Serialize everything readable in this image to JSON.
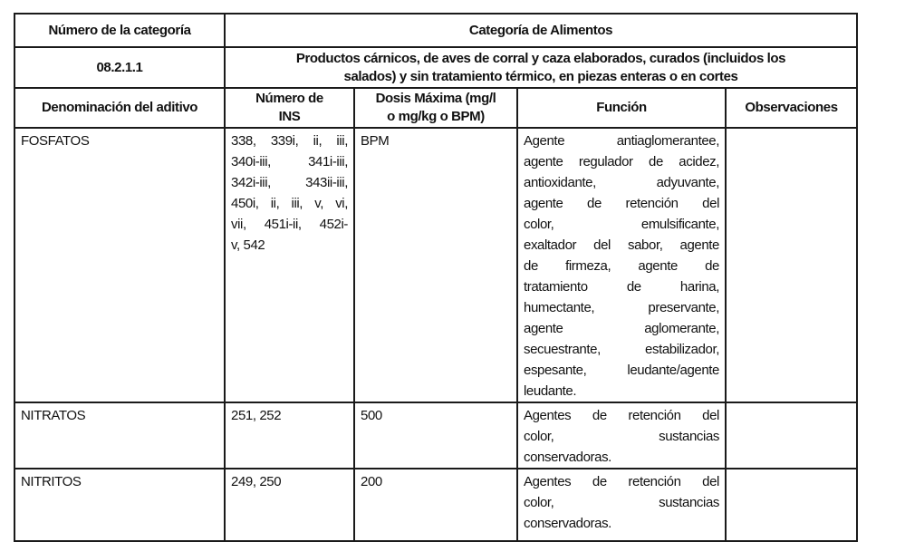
{
  "header": {
    "category_number_label": "Número de la categoría",
    "food_category_label": "Categoría de Alimentos",
    "category_number": "08.2.1.1",
    "category_description_lines": [
      "Productos cárnicos, de aves de corral y caza elaborados, curados (incluidos los",
      "salados) y sin tratamiento térmico, en piezas enteras o en cortes"
    ]
  },
  "columns": {
    "additive": "Denominación del aditivo",
    "ins_lines": [
      "Número de",
      "INS"
    ],
    "dose_lines": [
      "Dosis Máxima (mg/l",
      "o mg/kg o BPM)"
    ],
    "function": "Función",
    "observations": "Observaciones"
  },
  "rows": [
    {
      "additive": "FOSFATOS",
      "ins_lines": [
        "338, 339i, ii, iii,",
        "340i-iii, 341i-iii,",
        "342i-iii, 343ii-iii,",
        "450i, ii, iii, v, vi,",
        "vii, 451i-ii, 452i-",
        "v, 542"
      ],
      "dose": "BPM",
      "function_lines": [
        "Agente antiaglomerantee,",
        "agente regulador de acidez,",
        "antioxidante, adyuvante,",
        "agente de retención del",
        "color, emulsificante,",
        "exaltador del sabor, agente",
        "de firmeza, agente de",
        "tratamiento de harina,",
        "humectante, preservante,",
        "agente aglomerante,",
        "secuestrante, estabilizador,",
        "espesante, leudante/agente",
        "leudante."
      ],
      "observations": ""
    },
    {
      "additive": "NITRATOS",
      "ins_lines": [
        "251, 252"
      ],
      "dose": "500",
      "function_lines": [
        "Agentes de retención del",
        "color, sustancias",
        "conservadoras."
      ],
      "observations": ""
    },
    {
      "additive": "NITRITOS",
      "ins_lines": [
        "249, 250"
      ],
      "dose": "200",
      "function_lines": [
        "Agentes de retención del",
        "color, sustancias",
        "conservadoras."
      ],
      "observations": ""
    }
  ]
}
